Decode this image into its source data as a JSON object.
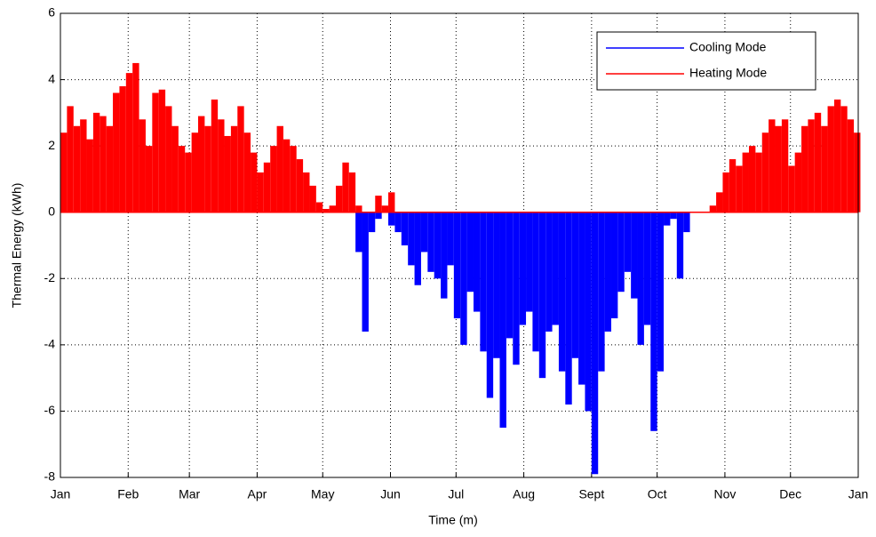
{
  "chart_data": {
    "type": "bar",
    "xlabel": "Time (m)",
    "ylabel": "Thermal Energy (kWh)",
    "x": [
      0,
      3,
      6,
      9,
      12,
      15,
      18,
      21,
      24,
      27,
      30,
      33,
      36,
      39,
      42,
      45,
      48,
      51,
      54,
      57,
      60,
      63,
      66,
      69,
      72,
      75,
      78,
      81,
      84,
      87,
      90,
      93,
      96,
      99,
      102,
      105,
      108,
      111,
      114,
      117,
      120,
      123,
      126,
      129,
      132,
      135,
      138,
      141,
      144,
      147,
      150,
      153,
      156,
      159,
      162,
      165,
      168,
      171,
      174,
      177,
      180,
      183,
      186,
      189,
      192,
      195,
      198,
      201,
      204,
      207,
      210,
      213,
      216,
      219,
      222,
      225,
      228,
      231,
      234,
      237,
      240,
      243,
      246,
      249,
      252,
      255,
      258,
      261,
      264,
      267,
      270,
      273,
      276,
      279,
      282,
      285,
      288,
      291,
      294,
      297,
      300,
      303,
      306,
      309,
      312,
      315,
      318,
      321,
      324,
      327,
      330,
      333,
      336,
      339,
      342,
      345,
      348,
      351,
      354,
      357,
      360,
      363
    ],
    "series": [
      {
        "name": "Cooling Mode",
        "color": "#0000ff",
        "values": [
          0,
          0,
          0,
          0,
          0,
          0,
          0,
          0,
          0,
          0,
          0,
          0,
          0,
          0,
          0,
          0,
          0,
          0,
          0,
          0,
          0,
          0,
          0,
          0,
          0,
          0,
          0,
          0,
          0,
          0,
          0,
          0,
          0,
          0,
          0,
          0,
          0,
          0,
          0,
          0,
          0,
          0,
          0,
          0,
          0,
          -1.2,
          -3.6,
          -0.6,
          -0.2,
          0,
          -0.4,
          -0.6,
          -1.0,
          -1.6,
          -2.2,
          -1.2,
          -1.8,
          -2.0,
          -2.6,
          -1.6,
          -3.2,
          -4.0,
          -2.4,
          -3.0,
          -4.2,
          -5.6,
          -4.4,
          -6.5,
          -3.8,
          -4.6,
          -3.4,
          -3.0,
          -4.2,
          -5.0,
          -3.6,
          -3.4,
          -4.8,
          -5.8,
          -4.4,
          -5.2,
          -6.0,
          -7.9,
          -4.8,
          -3.6,
          -3.2,
          -2.4,
          -1.8,
          -2.6,
          -4.0,
          -3.4,
          -6.6,
          -4.8,
          -0.4,
          -0.2,
          -2.0,
          -0.6,
          0,
          0,
          0,
          0,
          0,
          0,
          0,
          0,
          0,
          0,
          0,
          0,
          0,
          0,
          0,
          0,
          0,
          0,
          0,
          0,
          0,
          0,
          0,
          0,
          0,
          0
        ]
      },
      {
        "name": "Heating Mode",
        "color": "#ff0000",
        "values": [
          2.4,
          3.2,
          2.6,
          2.8,
          2.2,
          3.0,
          2.9,
          2.6,
          3.6,
          3.8,
          4.2,
          4.5,
          2.8,
          2.0,
          3.6,
          3.7,
          3.2,
          2.6,
          2.0,
          1.8,
          2.4,
          2.9,
          2.6,
          3.4,
          2.8,
          2.3,
          2.6,
          3.2,
          2.4,
          1.8,
          1.2,
          1.5,
          2.0,
          2.6,
          2.2,
          2.0,
          1.6,
          1.2,
          0.8,
          0.3,
          0.1,
          0.2,
          0.8,
          1.5,
          1.2,
          0.2,
          0,
          0,
          0.5,
          0.2,
          0.6,
          0,
          0,
          0,
          0,
          0,
          0,
          0,
          0,
          0,
          0,
          0,
          0,
          0,
          0,
          0,
          0,
          0,
          0,
          0,
          0,
          0,
          0,
          0,
          0,
          0,
          0,
          0,
          0,
          0,
          0,
          0,
          0,
          0,
          0,
          0,
          0,
          0,
          0,
          0,
          0,
          0,
          0,
          0,
          0,
          0,
          0,
          0,
          0,
          0.2,
          0.6,
          1.2,
          1.6,
          1.4,
          1.8,
          2.0,
          1.8,
          2.4,
          2.8,
          2.6,
          2.8,
          1.4,
          1.8,
          2.6,
          2.8,
          3.0,
          2.6,
          3.2,
          3.4,
          3.2,
          2.8,
          2.4
        ]
      }
    ],
    "xlim": [
      0,
      365
    ],
    "xticks": [
      {
        "value": 0,
        "label": "Jan"
      },
      {
        "value": 31,
        "label": "Feb"
      },
      {
        "value": 59,
        "label": "Mar"
      },
      {
        "value": 90,
        "label": "Apr"
      },
      {
        "value": 120,
        "label": "May"
      },
      {
        "value": 151,
        "label": "Jun"
      },
      {
        "value": 181,
        "label": "Jul"
      },
      {
        "value": 212,
        "label": "Aug"
      },
      {
        "value": 243,
        "label": "Sept"
      },
      {
        "value": 273,
        "label": "Oct"
      },
      {
        "value": 304,
        "label": "Nov"
      },
      {
        "value": 334,
        "label": "Dec"
      },
      {
        "value": 365,
        "label": "Jan"
      }
    ],
    "ylim": [
      -8,
      6
    ],
    "yticks": [
      -8,
      -6,
      -4,
      -2,
      0,
      2,
      4,
      6
    ],
    "grid": true,
    "legend": "upper right"
  }
}
